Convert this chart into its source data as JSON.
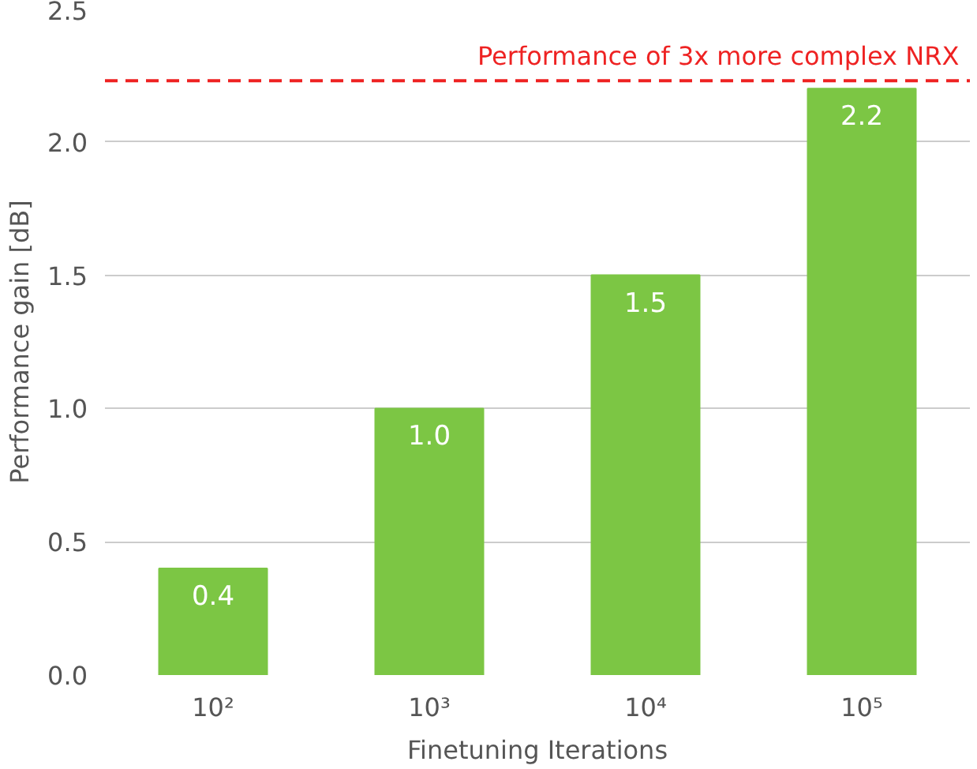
{
  "chart_data": {
    "type": "bar",
    "categories": [
      "10²",
      "10³",
      "10⁴",
      "10⁵"
    ],
    "values": [
      0.4,
      1.0,
      1.5,
      2.2
    ],
    "color": "#7cc644",
    "value_labels": [
      "0.4",
      "1.0",
      "1.5",
      "2.2"
    ],
    "xlabel": "Finetuning Iterations",
    "ylabel": "Performance gain [dB]",
    "ylim": [
      0,
      2.5
    ],
    "yticks": [
      {
        "value": 0,
        "label": "0.0"
      },
      {
        "value": 0.5,
        "label": "0.5"
      },
      {
        "value": 1,
        "label": "1.0"
      },
      {
        "value": 1.5,
        "label": "1.5"
      },
      {
        "value": 2,
        "label": "2.0"
      },
      {
        "value": 2.5,
        "label": "2.5"
      }
    ],
    "grid": "y",
    "ref_lines": [
      {
        "axis": "y",
        "value": 2.23,
        "label": "Performance of 3x more complex NRX",
        "color": "#ee2222",
        "line_style": "dashed"
      }
    ]
  }
}
